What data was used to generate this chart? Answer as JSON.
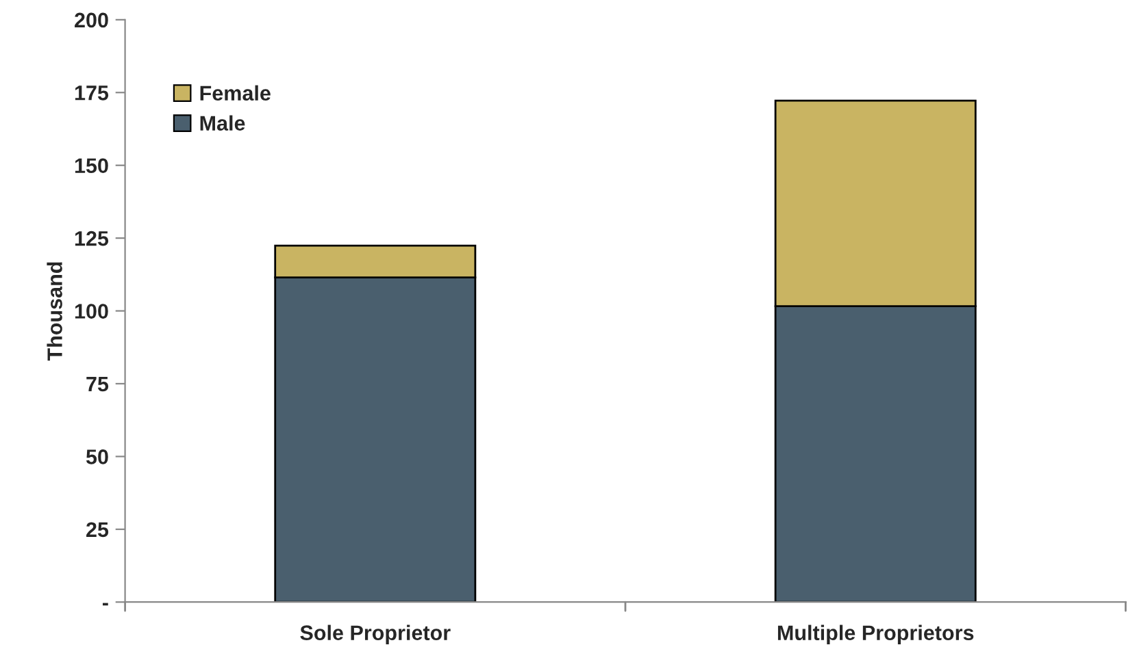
{
  "chart_data": {
    "type": "bar",
    "ylabel": "Thousand",
    "categories": [
      "Sole Proprietor",
      "Multiple Proprietors"
    ],
    "stacked": true,
    "series": [
      {
        "name": "Male",
        "color": "#4a5f6e",
        "values": [
          111.5,
          101.6
        ]
      },
      {
        "name": "Female",
        "color": "#c9b462",
        "values": [
          10.9,
          70.6
        ]
      }
    ],
    "ylim": [
      0,
      200
    ],
    "yticks": [
      {
        "value": 0,
        "label": "-"
      },
      25,
      50,
      75,
      100,
      125,
      150,
      175,
      200
    ],
    "grid": false,
    "legend": "top left"
  }
}
